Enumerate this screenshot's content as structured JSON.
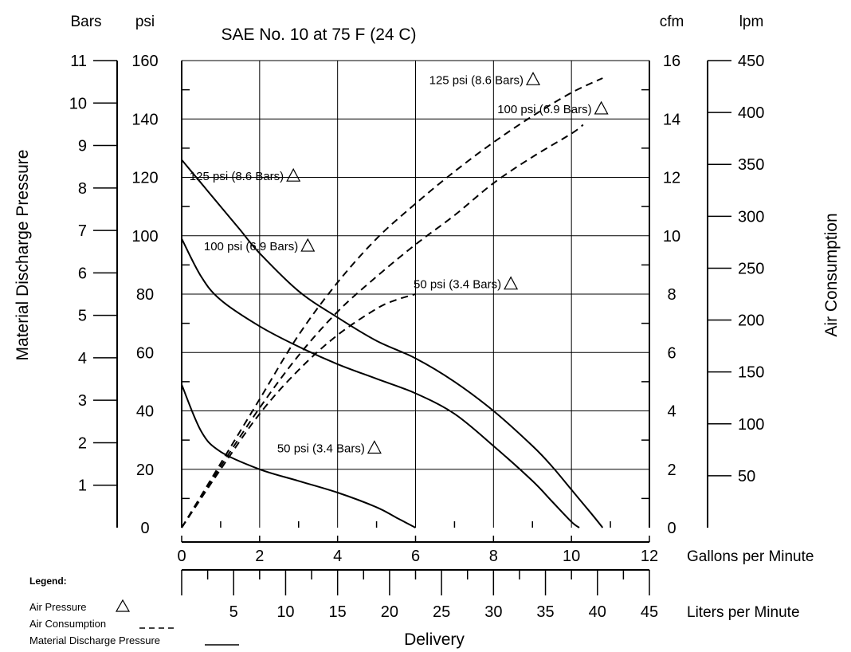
{
  "chart_data": {
    "type": "line",
    "title": "SAE No. 10 at 75 F (24 C)",
    "xlabel": "Delivery",
    "x_axis": {
      "primary_unit": "Gallons per Minute",
      "primary_range": [
        0,
        12
      ],
      "primary_ticks": [
        "0",
        "2",
        "4",
        "6",
        "8",
        "10",
        "12"
      ],
      "secondary_unit": "Liters per Minute",
      "secondary_range": [
        0,
        45
      ],
      "secondary_ticks": [
        "5",
        "10",
        "15",
        "20",
        "25",
        "30",
        "35",
        "40",
        "45"
      ]
    },
    "y_left": {
      "label": "Material Discharge Pressure",
      "psi_unit": "psi",
      "psi_range": [
        0,
        160
      ],
      "psi_ticks": [
        "0",
        "20",
        "40",
        "60",
        "80",
        "100",
        "120",
        "140",
        "160"
      ],
      "bars_unit": "Bars",
      "bars_range": [
        0,
        11
      ],
      "bars_ticks": [
        "1",
        "2",
        "3",
        "4",
        "5",
        "6",
        "7",
        "8",
        "9",
        "10",
        "11"
      ]
    },
    "y_right": {
      "label": "Air Consumption",
      "cfm_unit": "cfm",
      "cfm_range": [
        0,
        16
      ],
      "cfm_ticks": [
        "0",
        "2",
        "4",
        "6",
        "8",
        "10",
        "12",
        "14",
        "16"
      ],
      "lpm_unit": "lpm",
      "lpm_range": [
        0,
        450
      ],
      "lpm_ticks": [
        "50",
        "100",
        "150",
        "200",
        "250",
        "300",
        "350",
        "400",
        "450"
      ]
    },
    "grid": true,
    "series": [
      {
        "kind": "material_pressure",
        "style": "solid",
        "axis": "psi",
        "x": [
          0,
          0.5,
          1,
          2,
          3,
          4,
          5,
          5.5,
          6
        ],
        "y": [
          49,
          33,
          26,
          20,
          16,
          12,
          7,
          3.5,
          0
        ]
      },
      {
        "kind": "material_pressure",
        "style": "solid",
        "axis": "psi",
        "x": [
          0,
          0.5,
          1,
          2,
          3,
          4,
          5,
          6,
          7,
          8,
          9,
          9.5,
          10,
          10.2
        ],
        "y": [
          99,
          86,
          78,
          69,
          62,
          56,
          51,
          46,
          39,
          28,
          16,
          9,
          2,
          0
        ]
      },
      {
        "kind": "material_pressure",
        "style": "solid",
        "axis": "psi",
        "x": [
          0,
          0.5,
          1,
          1.5,
          2,
          3,
          4,
          5,
          6,
          7,
          8,
          9,
          9.5,
          10,
          10.5,
          10.8
        ],
        "y": [
          126,
          118,
          110,
          102,
          94,
          81,
          72,
          64,
          58,
          50,
          40,
          28,
          21,
          13,
          5,
          0
        ]
      },
      {
        "kind": "air_consumption",
        "style": "dashed",
        "axis": "cfm",
        "x": [
          0,
          1,
          2,
          3,
          4,
          5,
          5.5,
          6
        ],
        "y": [
          0,
          2,
          3.9,
          5.4,
          6.6,
          7.5,
          7.8,
          8.0
        ]
      },
      {
        "kind": "air_consumption",
        "style": "dashed",
        "axis": "cfm",
        "x": [
          0,
          1,
          2,
          3,
          4,
          5,
          6,
          7,
          8,
          9,
          10,
          10.3
        ],
        "y": [
          0,
          2.1,
          4.1,
          5.9,
          7.4,
          8.6,
          9.7,
          10.7,
          11.8,
          12.7,
          13.5,
          13.8
        ]
      },
      {
        "kind": "air_consumption",
        "style": "dashed",
        "axis": "cfm",
        "x": [
          0,
          1,
          2,
          3,
          4,
          5,
          6,
          7,
          8,
          9,
          10,
          10.8
        ],
        "y": [
          0,
          2.2,
          4.4,
          6.6,
          8.4,
          9.9,
          11.1,
          12.2,
          13.2,
          14.1,
          14.9,
          15.4
        ]
      }
    ],
    "annotations": [
      {
        "text": "125 psi (8.6 Bars)",
        "symbol": "△",
        "x": 0.2,
        "y": 119,
        "axis": "psi"
      },
      {
        "text": "100 psi (6.9 Bars)",
        "symbol": "△",
        "x": 0.57,
        "y": 95,
        "axis": "psi"
      },
      {
        "text": "50 psi (3.4 Bars)",
        "symbol": "△",
        "x": 2.45,
        "y": 25.8,
        "axis": "psi"
      },
      {
        "text": "125 psi (8.6 Bars)",
        "symbol": "△",
        "x": 6.35,
        "y": 15.2,
        "axis": "cfm"
      },
      {
        "text": "100 psi (6.9 Bars)",
        "symbol": "△",
        "x": 8.1,
        "y": 14.2,
        "axis": "cfm"
      },
      {
        "text": "50 psi (3.4 Bars)",
        "symbol": "△",
        "x": 5.95,
        "y": 8.2,
        "axis": "cfm"
      }
    ],
    "legend": {
      "title": "Legend:",
      "items": [
        {
          "label": "Air Pressure",
          "symbol": "triangle"
        },
        {
          "label": "Air Consumption",
          "symbol": "dashed"
        },
        {
          "label": "Material Discharge Pressure",
          "symbol": "solid"
        }
      ]
    }
  }
}
